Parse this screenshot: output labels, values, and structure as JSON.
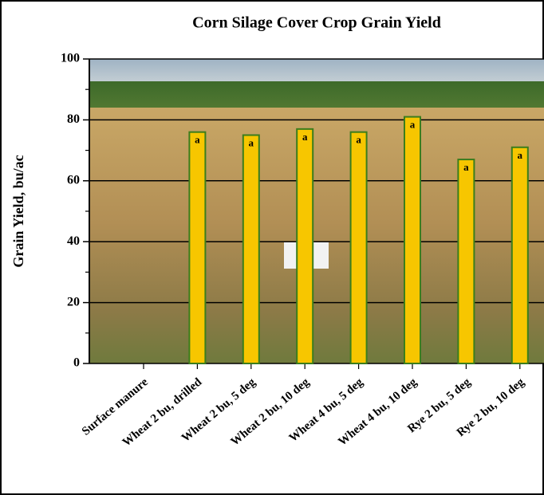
{
  "chart_data": {
    "type": "bar",
    "title": "Corn Silage Cover Crop Grain Yield",
    "y_label": "Grain Yield, bu/ac",
    "categories": [
      "Surface manure",
      "Wheat 2 bu, drilled",
      "Wheat 2 bu, 5 deg",
      "Wheat 2 bu, 10 deg",
      "Wheat 4 bu, 5 deg",
      "Wheat 4 bu, 10 deg",
      "Rye 2 bu, 5 deg",
      "Rye 2 bu, 10 deg"
    ],
    "values": [
      null,
      76,
      75,
      77,
      76,
      81,
      67,
      71
    ],
    "letters": [
      null,
      "a",
      "a",
      "a",
      "a",
      "a",
      "a",
      "a"
    ],
    "color": "#f7c600",
    "ylim": [
      0,
      100
    ],
    "yticks": [
      0,
      20,
      40,
      60,
      80,
      100
    ],
    "grid": true
  }
}
